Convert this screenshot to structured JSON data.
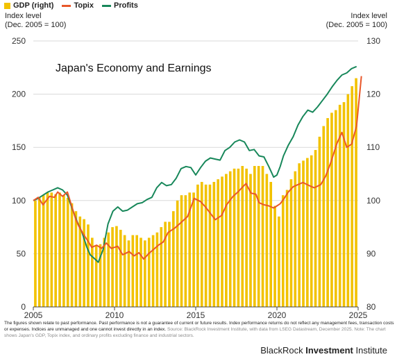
{
  "chart_data": {
    "type": "bar+line",
    "title": "Japan's Economy and Earnings",
    "left_axis_title": [
      "Index level",
      "(Dec. 2005 = 100)"
    ],
    "right_axis_title": [
      "Index level",
      "(Dec. 2005 = 100)"
    ],
    "left_ylim": [
      0,
      250
    ],
    "left_ticks": [
      "0",
      "50",
      "100",
      "150",
      "200",
      "250"
    ],
    "right_ylim": [
      80,
      130
    ],
    "right_ticks": [
      "80",
      "90",
      "100",
      "110",
      "120",
      "130"
    ],
    "xlim": [
      2005,
      2025
    ],
    "x_ticks": [
      "2005",
      "2010",
      "2015",
      "2020",
      "2025"
    ],
    "grid": "horizontal",
    "legend": [
      {
        "name": "GDP (right)",
        "color": "#f2c200",
        "kind": "bar"
      },
      {
        "name": "Topix",
        "color": "#e8572a",
        "kind": "line"
      },
      {
        "name": "Profits",
        "color": "#17875a",
        "kind": "line"
      }
    ],
    "series": [
      {
        "name": "GDP (right)",
        "axis": "right",
        "x": [
          2005.0,
          2005.25,
          2005.5,
          2005.75,
          2006.0,
          2006.25,
          2006.5,
          2006.75,
          2007.0,
          2007.25,
          2007.5,
          2007.75,
          2008.0,
          2008.25,
          2008.5,
          2008.75,
          2009.0,
          2009.25,
          2009.5,
          2009.75,
          2010.0,
          2010.25,
          2010.5,
          2010.75,
          2011.0,
          2011.25,
          2011.5,
          2011.75,
          2012.0,
          2012.25,
          2012.5,
          2012.75,
          2013.0,
          2013.25,
          2013.5,
          2013.75,
          2014.0,
          2014.25,
          2014.5,
          2014.75,
          2015.0,
          2015.25,
          2015.5,
          2015.75,
          2016.0,
          2016.25,
          2016.5,
          2016.75,
          2017.0,
          2017.25,
          2017.5,
          2017.75,
          2018.0,
          2018.25,
          2018.5,
          2018.75,
          2019.0,
          2019.25,
          2019.5,
          2019.75,
          2020.0,
          2020.25,
          2020.5,
          2020.75,
          2021.0,
          2021.25,
          2021.5,
          2021.75,
          2022.0,
          2022.25,
          2022.5,
          2022.75,
          2023.0,
          2023.25,
          2023.5,
          2023.75,
          2024.0,
          2024.25,
          2024.5,
          2024.75
        ],
        "values": [
          100.0,
          100.5,
          101.0,
          101.5,
          101.5,
          101.2,
          101.5,
          101.0,
          100.5,
          99.5,
          98.0,
          97.0,
          96.5,
          95.5,
          93.0,
          91.5,
          91.8,
          93.0,
          94.0,
          95.0,
          95.2,
          94.5,
          93.5,
          92.5,
          93.5,
          93.5,
          93.0,
          92.5,
          93.0,
          93.5,
          94.0,
          95.0,
          96.0,
          96.0,
          98.0,
          100.0,
          101.0,
          101.0,
          101.5,
          101.5,
          103.0,
          103.5,
          103.0,
          103.0,
          103.5,
          104.0,
          104.5,
          105.0,
          105.5,
          106.0,
          106.0,
          106.5,
          106.0,
          105.0,
          106.5,
          106.5,
          106.5,
          105.0,
          103.5,
          99.0,
          97.0,
          101.0,
          102.0,
          104.0,
          105.5,
          107.0,
          107.5,
          108.0,
          108.5,
          109.5,
          112.0,
          114.0,
          115.5,
          116.5,
          117.0,
          118.0,
          118.5,
          120.0,
          121.5,
          123.0
        ]
      },
      {
        "name": "Topix",
        "axis": "left",
        "x": [
          2005.0,
          2005.3,
          2005.6,
          2006.0,
          2006.3,
          2006.5,
          2006.8,
          2007.1,
          2007.4,
          2007.6,
          2007.8,
          2008.1,
          2008.4,
          2008.6,
          2008.9,
          2009.2,
          2009.5,
          2009.8,
          2010.2,
          2010.5,
          2010.9,
          2011.2,
          2011.5,
          2011.8,
          2012.1,
          2012.4,
          2012.7,
          2013.0,
          2013.3,
          2013.7,
          2014.0,
          2014.5,
          2014.9,
          2015.3,
          2015.6,
          2015.9,
          2016.2,
          2016.6,
          2016.9,
          2017.3,
          2017.6,
          2017.9,
          2018.1,
          2018.4,
          2018.7,
          2018.9,
          2019.2,
          2019.5,
          2019.8,
          2020.0,
          2020.2,
          2020.4,
          2020.7,
          2021.0,
          2021.3,
          2021.6,
          2022.0,
          2022.3,
          2022.7,
          2023.0,
          2023.3,
          2023.7,
          2024.0,
          2024.3,
          2024.6,
          2024.9,
          2025.2
        ],
        "values": [
          100.0,
          103.0,
          96.0,
          104.0,
          103.0,
          108.0,
          104.0,
          108.0,
          93.0,
          83.0,
          76.0,
          68.0,
          61.0,
          56.0,
          58.0,
          55.0,
          60.0,
          55.0,
          57.0,
          49.0,
          52.0,
          48.0,
          51.0,
          45.0,
          50.0,
          54.0,
          58.0,
          61.0,
          70.0,
          74.0,
          78.0,
          85.0,
          102.0,
          99.0,
          94.0,
          88.0,
          82.0,
          86.0,
          96.0,
          104.0,
          108.0,
          113.0,
          116.0,
          107.0,
          106.0,
          98.0,
          96.0,
          95.0,
          93.0,
          95.0,
          97.0,
          101.0,
          108.0,
          113.0,
          115.0,
          117.0,
          114.0,
          112.0,
          115.0,
          123.0,
          135.0,
          154.0,
          164.0,
          150.0,
          153.0,
          170.0,
          217.0
        ]
      },
      {
        "name": "Profits",
        "axis": "left",
        "x": [
          2005.0,
          2005.3,
          2005.6,
          2005.9,
          2006.2,
          2006.5,
          2006.8,
          2007.1,
          2007.4,
          2007.7,
          2008.0,
          2008.3,
          2008.5,
          2008.8,
          2009.0,
          2009.3,
          2009.6,
          2009.9,
          2010.2,
          2010.5,
          2010.8,
          2011.1,
          2011.4,
          2011.7,
          2012.0,
          2012.3,
          2012.6,
          2012.9,
          2013.2,
          2013.5,
          2013.8,
          2014.1,
          2014.4,
          2014.7,
          2015.0,
          2015.3,
          2015.6,
          2015.9,
          2016.2,
          2016.5,
          2016.8,
          2017.1,
          2017.4,
          2017.7,
          2018.0,
          2018.3,
          2018.6,
          2018.9,
          2019.2,
          2019.5,
          2019.8,
          2020.0,
          2020.2,
          2020.4,
          2020.7,
          2021.0,
          2021.3,
          2021.6,
          2021.9,
          2022.2,
          2022.5,
          2022.8,
          2023.1,
          2023.4,
          2023.7,
          2024.0,
          2024.3,
          2024.6,
          2024.9
        ],
        "values": [
          100.0,
          102.0,
          105.0,
          108.0,
          110.0,
          112.0,
          110.0,
          105.0,
          92.0,
          80.0,
          70.0,
          56.0,
          49.0,
          45.0,
          42.0,
          54.0,
          78.0,
          90.0,
          94.0,
          90.0,
          91.0,
          94.0,
          97.0,
          98.0,
          101.0,
          103.0,
          112.0,
          117.0,
          114.0,
          115.0,
          121.0,
          130.0,
          132.0,
          131.0,
          124.0,
          131.0,
          137.0,
          140.0,
          139.0,
          138.0,
          147.0,
          150.0,
          155.0,
          157.0,
          155.0,
          147.0,
          148.0,
          142.0,
          141.0,
          132.0,
          122.0,
          124.0,
          132.0,
          142.0,
          152.0,
          160.0,
          171.0,
          179.0,
          185.0,
          183.0,
          188.0,
          194.0,
          200.0,
          207.0,
          213.0,
          218.0,
          220.0,
          224.0,
          226.0
        ]
      }
    ]
  },
  "footnote": {
    "main": "The figures shown relate to past performance. Past performance is not a guarantee of current or future results. Index performance returns do not reflect any management fees, transaction costs or expenses. Indices are unmanaged and one cannot invest directly in an index.",
    "source": " Source: BlackRock Investment Institute, with data from LSEG Datastream, December 2025. Note: The chart shows Japan's GDP, Topix index, and ordinary profits excluding finance and industrial sectors."
  },
  "branding": {
    "light": "BlackRock ",
    "bold": "Investment",
    "rest": " Institute"
  }
}
